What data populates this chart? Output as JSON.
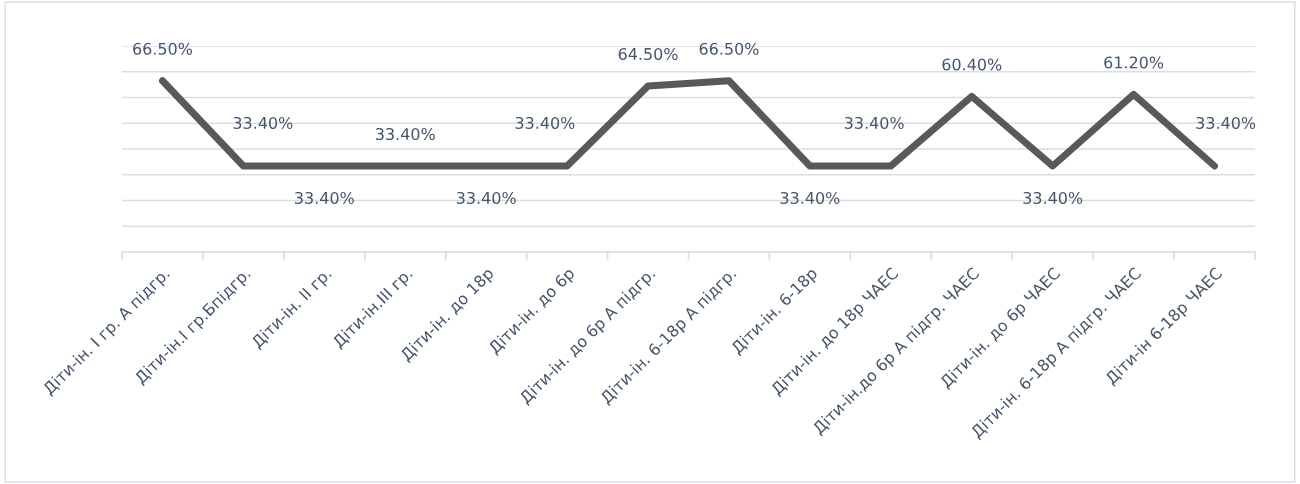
{
  "chart_data": {
    "type": "line",
    "categories": [
      "Діти-ін. І гр. А підгр.",
      "Діти-ін.І гр.Бпідгр.",
      "Діти-ін. ІІ гр.",
      "Діти-ін.ІІІ гр.",
      "Діти-ін. до 18р",
      "Діти-ін. до 6р",
      "Діти-ін. до 6р А підгр.",
      "Діти-ін. 6-18р А підгр.",
      "Діти-ін. 6-18р",
      "Діти-ін. до 18р ЧАЕС",
      "Діти-ін.до 6р А підгр. ЧАЕС",
      "Діти-ін. до 6р ЧАЕС",
      "Діти-ін. 6-18р А підгр. ЧАЕС",
      "Діти-ін 6-18р ЧАЕС"
    ],
    "series": [
      {
        "color": "#595959",
        "values": [
          66.5,
          33.4,
          33.4,
          33.4,
          33.4,
          33.4,
          64.5,
          66.5,
          33.4,
          33.4,
          60.4,
          33.4,
          61.2,
          33.4
        ],
        "value_labels": [
          "66.50%",
          "33.40%",
          "33.40%",
          "33.40%",
          "33.40%",
          "33.40%",
          "64.50%",
          "66.50%",
          "33.40%",
          "33.40%",
          "60.40%",
          "33.40%",
          "61.20%",
          "33.40%"
        ]
      }
    ],
    "ylim": [
      0,
      80
    ],
    "yticks": [
      {
        "value": 0,
        "label": null
      },
      {
        "value": 10,
        "label": null
      },
      {
        "value": 20,
        "label": null
      },
      {
        "value": 30,
        "label": null
      },
      {
        "value": 40,
        "label": null
      },
      {
        "value": 50,
        "label": null
      },
      {
        "value": 60,
        "label": null
      },
      {
        "value": 70,
        "label": null
      },
      {
        "value": 80,
        "label": null
      }
    ],
    "tick_labels": "x",
    "grid": "y",
    "marker": "none",
    "line_style": "solid"
  }
}
